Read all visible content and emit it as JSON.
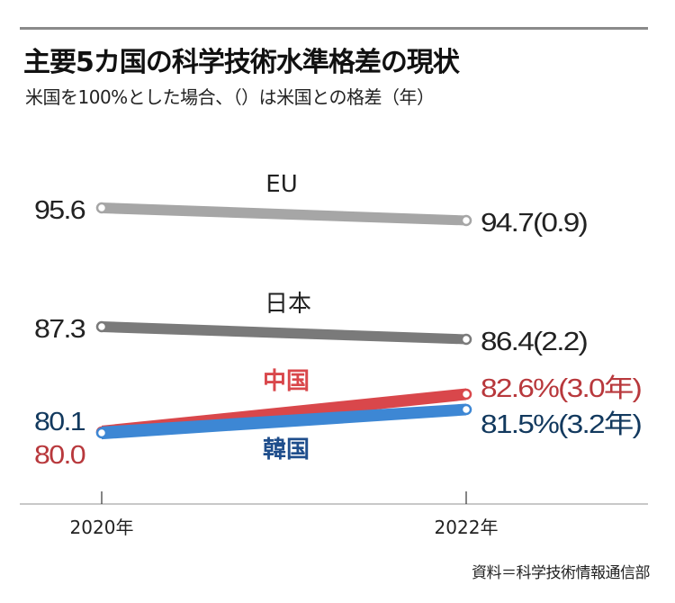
{
  "title": "主要5カ国の科学技術水準格差の現状",
  "subtitle": "米国を100%とした場合、（）は米国との格差（年）",
  "source": "資料＝科学技術情報通信部",
  "chart_data": {
    "type": "line",
    "title": "主要5カ国の科学技術水準格差の現状",
    "subtitle": "米国を100%とした場合、（）は米国との格差（年）",
    "x": [
      "2020年",
      "2022年"
    ],
    "xlabel": "",
    "ylabel": "",
    "baseline": "米国 = 100",
    "grid": false,
    "series": [
      {
        "name": "EU",
        "values": [
          95.6,
          94.7
        ],
        "gap_years_2022": 0.9,
        "color": "#a6a6a6",
        "label_color": "#222222",
        "start_label": "95.6",
        "end_label": "94.7(0.9)"
      },
      {
        "name": "日本",
        "values": [
          87.3,
          86.4
        ],
        "gap_years_2022": 2.2,
        "color": "#7a7a7a",
        "label_color": "#222222",
        "start_label": "87.3",
        "end_label": "86.4(2.2)"
      },
      {
        "name": "中国",
        "values": [
          80.0,
          82.6
        ],
        "gap_years_2022": 3.0,
        "color": "#d9474b",
        "label_color": "#d9474b",
        "start_label": "80.0",
        "end_label": "82.6%(3.0年)"
      },
      {
        "name": "韓国",
        "values": [
          80.1,
          81.5
        ],
        "gap_years_2022": 3.2,
        "color": "#3d87d4",
        "label_color": "#1f4e8c",
        "start_label": "80.1",
        "end_label": "81.5%(3.2年)"
      }
    ],
    "text_colors": {
      "china_start": "#b8383c",
      "korea_start": "#12395e",
      "china_end": "#b8383c",
      "korea_end": "#12395e"
    }
  }
}
